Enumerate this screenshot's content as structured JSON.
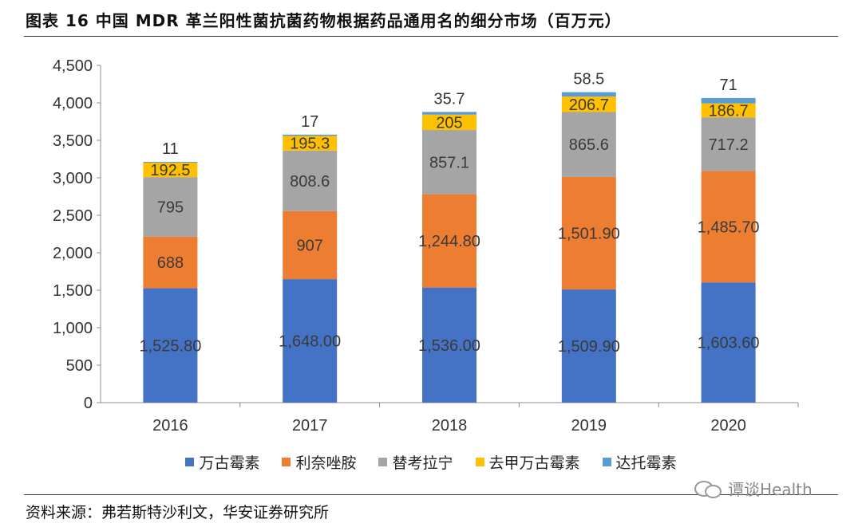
{
  "header": {
    "title": "图表 16 中国 MDR 革兰阳性菌抗菌药物根据药品通用名的细分市场（百万元）"
  },
  "footer": {
    "source": "资料来源：弗若斯特沙利文，华安证券研究所",
    "watermark": "谭谈Health"
  },
  "chart_data": {
    "type": "bar",
    "stacked": true,
    "title": "中国 MDR 革兰阳性菌抗菌药物根据药品通用名的细分市场（百万元）",
    "categories": [
      "2016",
      "2017",
      "2018",
      "2019",
      "2020"
    ],
    "ylim": [
      0,
      4500
    ],
    "yticks": [
      0,
      500,
      1000,
      1500,
      2000,
      2500,
      3000,
      3500,
      4000,
      4500
    ],
    "ytick_labels": [
      "0",
      "500",
      "1,000",
      "1,500",
      "2,000",
      "2,500",
      "3,000",
      "3,500",
      "4,000",
      "4,500"
    ],
    "grid": false,
    "legend_position": "bottom",
    "series": [
      {
        "name": "万古霉素",
        "color": "#4472C4",
        "values": [
          1525.8,
          1648.0,
          1536.0,
          1509.9,
          1603.6
        ],
        "labels": [
          "1,525.80",
          "1,648.00",
          "1,536.00",
          "1,509.90",
          "1,603.60"
        ]
      },
      {
        "name": "利奈唑胺",
        "color": "#ED7D31",
        "values": [
          688,
          907,
          1244.8,
          1501.9,
          1485.7
        ],
        "labels": [
          "688",
          "907",
          "1,244.80",
          "1,501.90",
          "1,485.70"
        ]
      },
      {
        "name": "替考拉宁",
        "color": "#A5A5A5",
        "values": [
          795,
          808.6,
          857.1,
          865.6,
          717.2
        ],
        "labels": [
          "795",
          "808.6",
          "857.1",
          "865.6",
          "717.2"
        ]
      },
      {
        "name": "去甲万古霉素",
        "color": "#FFC000",
        "values": [
          192.5,
          195.3,
          205,
          206.7,
          186.7
        ],
        "labels": [
          "192.5",
          "195.3",
          "205",
          "206.7",
          "186.7"
        ]
      },
      {
        "name": "达托霉素",
        "color": "#5B9BD5",
        "values": [
          11,
          17,
          35.7,
          58.5,
          71
        ],
        "labels": [
          "11",
          "17",
          "35.7",
          "58.5",
          "71"
        ]
      }
    ]
  }
}
